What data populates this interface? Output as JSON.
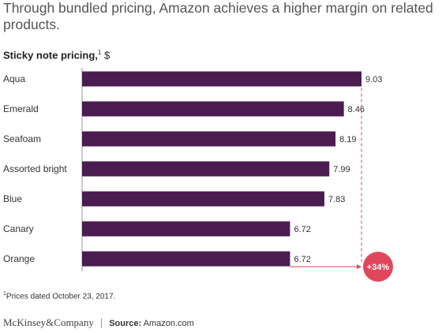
{
  "headline": "Through bundled pricing, Amazon achieves a higher margin on related products.",
  "chart_title": {
    "bold": "Sticky note pricing,",
    "marker": "1",
    "unit": " $"
  },
  "chart_data": {
    "type": "bar",
    "orientation": "horizontal",
    "categories": [
      "Aqua",
      "Emerald",
      "Seafoam",
      "Assorted bright",
      "Blue",
      "Canary",
      "Orange"
    ],
    "values": [
      9.03,
      8.46,
      8.19,
      7.99,
      7.83,
      6.72,
      6.72
    ],
    "value_labels": [
      "9.03",
      "8.46",
      "8.19",
      "7.99",
      "7.83",
      "6.72",
      "6.72"
    ],
    "bar_color": "#4a1c4f",
    "annotation": {
      "text": "+34%",
      "from_category": "Orange",
      "to_value": 9.03,
      "color": "#e0475c"
    },
    "xlim": [
      0,
      9.03
    ],
    "grid": false,
    "legend": "none"
  },
  "footnote": {
    "marker": "1",
    "text": "Prices dated October 23, 2017."
  },
  "footer": {
    "brand": "McKinsey&Company",
    "separator": "|",
    "source_label": "Source:",
    "source_text": " Amazon.com"
  },
  "colors": {
    "accent": "#e0475c",
    "bar": "#4a1c4f"
  }
}
